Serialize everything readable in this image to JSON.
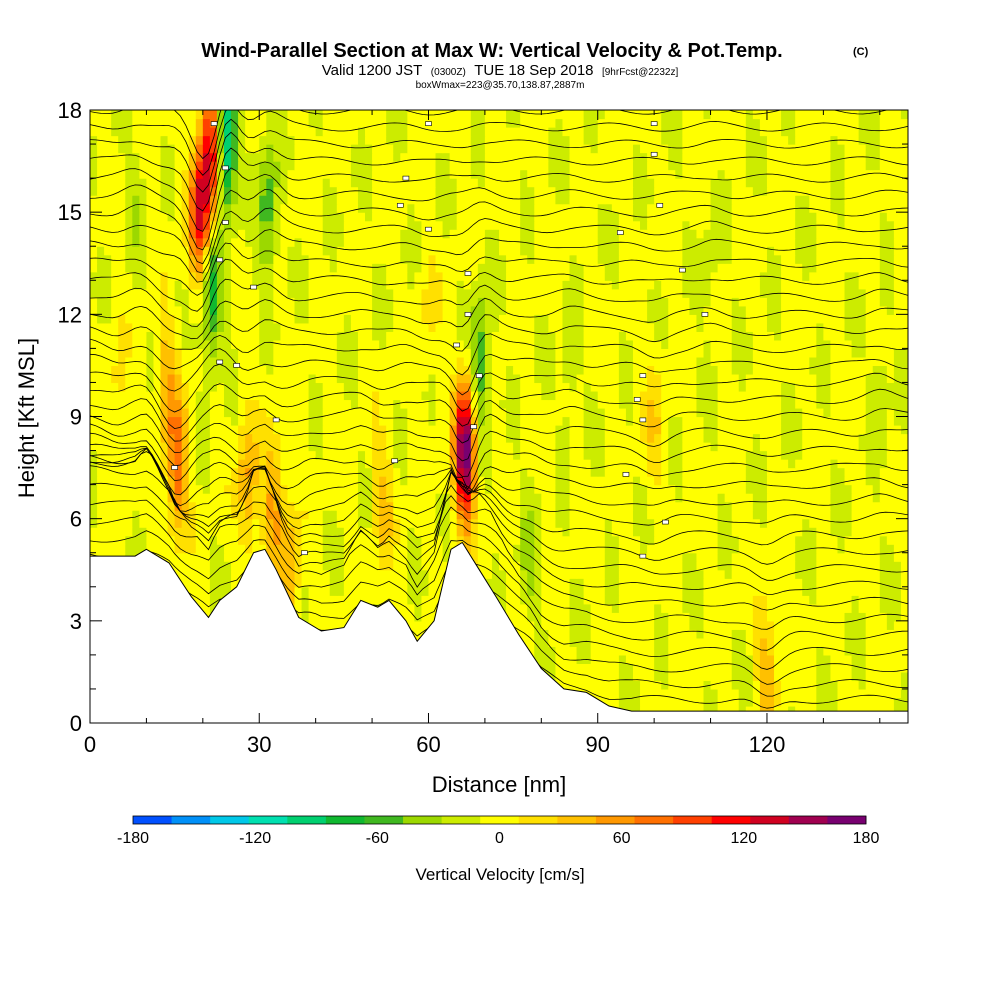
{
  "chart_data": {
    "type": "heatmap",
    "title": "Wind-Parallel Section at Max W: Vertical Velocity & Pot.Temp.",
    "title_units": "(C)",
    "subtitle": {
      "prefix": "Valid 1200 JST",
      "utc": "(0300Z)",
      "date": "TUE 18 Sep 2018",
      "forecast": "[9hrFcst@2232z]"
    },
    "subtitle2": "boxWmax=223@35.70,138.87,2887m",
    "xlabel": "Distance [nm]",
    "ylabel": "Height [Kft MSL]",
    "xlim": [
      0,
      145
    ],
    "ylim": [
      0,
      18
    ],
    "xticks": [
      0,
      30,
      60,
      90,
      120
    ],
    "yticks": [
      0,
      3,
      6,
      9,
      12,
      15,
      18
    ],
    "colorbar": {
      "label": "Vertical Velocity [cm/s]",
      "min": -180,
      "max": 180,
      "step": 20,
      "ticks": [
        -180,
        -120,
        -60,
        0,
        60,
        120,
        180
      ],
      "colors": [
        "#0000ff",
        "#0050ff",
        "#0090f8",
        "#00c8e8",
        "#00e0b0",
        "#00d070",
        "#10b830",
        "#40b820",
        "#9cd800",
        "#ccec00",
        "#ffff00",
        "#ffe000",
        "#ffc000",
        "#ff9800",
        "#ff7000",
        "#ff4000",
        "#ff0000",
        "#d00020",
        "#a00050",
        "#780070",
        "#500090"
      ]
    },
    "terrain_profile": [
      [
        0,
        4.9
      ],
      [
        8,
        4.9
      ],
      [
        10,
        5.1
      ],
      [
        14,
        4.7
      ],
      [
        18,
        3.7
      ],
      [
        21,
        3.1
      ],
      [
        23,
        3.6
      ],
      [
        26,
        4.0
      ],
      [
        29,
        5.0
      ],
      [
        31,
        5.1
      ],
      [
        33,
        4.5
      ],
      [
        37,
        3.1
      ],
      [
        41,
        2.7
      ],
      [
        45,
        2.8
      ],
      [
        48,
        3.6
      ],
      [
        51,
        3.4
      ],
      [
        53,
        3.6
      ],
      [
        56,
        3.0
      ],
      [
        58,
        2.4
      ],
      [
        61,
        3.0
      ],
      [
        64,
        5.1
      ],
      [
        66,
        5.3
      ],
      [
        69,
        4.5
      ],
      [
        72,
        3.7
      ],
      [
        76,
        2.6
      ],
      [
        80,
        1.6
      ],
      [
        84,
        1.0
      ],
      [
        88,
        0.9
      ],
      [
        92,
        0.5
      ],
      [
        96,
        0.35
      ],
      [
        145,
        0.35
      ]
    ],
    "updraft_cores": [
      {
        "x": 21.5,
        "y": 16.8,
        "value": 140
      },
      {
        "x": 19.5,
        "y": 15.0,
        "value": 130
      },
      {
        "x": 15.5,
        "y": 7.5,
        "value": 90
      },
      {
        "x": 13.5,
        "y": 10.0,
        "value": 50
      },
      {
        "x": 66.5,
        "y": 8.0,
        "value": 200
      },
      {
        "x": 32.5,
        "y": 6.5,
        "value": 60
      },
      {
        "x": 35.5,
        "y": 4.5,
        "value": 50
      },
      {
        "x": 28.0,
        "y": 7.0,
        "value": 60
      },
      {
        "x": 52.0,
        "y": 6.5,
        "value": 40
      },
      {
        "x": 120.0,
        "y": 1.8,
        "value": 45
      },
      {
        "x": 100.0,
        "y": 8.7,
        "value": 30
      },
      {
        "x": 5.0,
        "y": 9.5,
        "value": 25
      },
      {
        "x": 60.0,
        "y": 12.0,
        "value": 20
      }
    ],
    "downdraft_cores": [
      {
        "x": 24.0,
        "y": 17.0,
        "value": -130
      },
      {
        "x": 21.5,
        "y": 12.5,
        "value": -80
      },
      {
        "x": 31.5,
        "y": 15.0,
        "value": -60
      },
      {
        "x": 69.0,
        "y": 10.5,
        "value": -70
      },
      {
        "x": 8.0,
        "y": 15.5,
        "value": -20
      },
      {
        "x": 78.0,
        "y": 5.0,
        "value": -30
      },
      {
        "x": 85.0,
        "y": 10.0,
        "value": -20
      },
      {
        "x": 110.0,
        "y": 13.0,
        "value": -15
      },
      {
        "x": 140.0,
        "y": 10.0,
        "value": -20
      }
    ],
    "potential_temperature_contours": {
      "count": 36,
      "label_positions": [
        [
          22,
          17.6
        ],
        [
          24,
          16.3
        ],
        [
          24,
          14.7
        ],
        [
          23,
          13.6
        ],
        [
          29,
          12.8
        ],
        [
          23,
          10.6
        ],
        [
          26,
          10.5
        ],
        [
          33,
          8.9
        ],
        [
          15,
          7.5
        ],
        [
          38,
          5.0
        ],
        [
          54,
          7.7
        ],
        [
          60,
          14.5
        ],
        [
          56,
          16.0
        ],
        [
          55,
          15.2
        ],
        [
          67,
          13.2
        ],
        [
          67,
          12.0
        ],
        [
          65,
          11.1
        ],
        [
          69,
          10.2
        ],
        [
          68,
          8.7
        ],
        [
          60,
          17.6
        ],
        [
          100,
          17.6
        ],
        [
          100,
          16.7
        ],
        [
          101,
          15.2
        ],
        [
          94,
          14.4
        ],
        [
          105,
          13.3
        ],
        [
          109,
          12.0
        ],
        [
          98,
          10.2
        ],
        [
          97,
          9.5
        ],
        [
          98,
          8.9
        ],
        [
          95,
          7.3
        ],
        [
          102,
          5.9
        ],
        [
          98,
          4.9
        ]
      ]
    }
  }
}
